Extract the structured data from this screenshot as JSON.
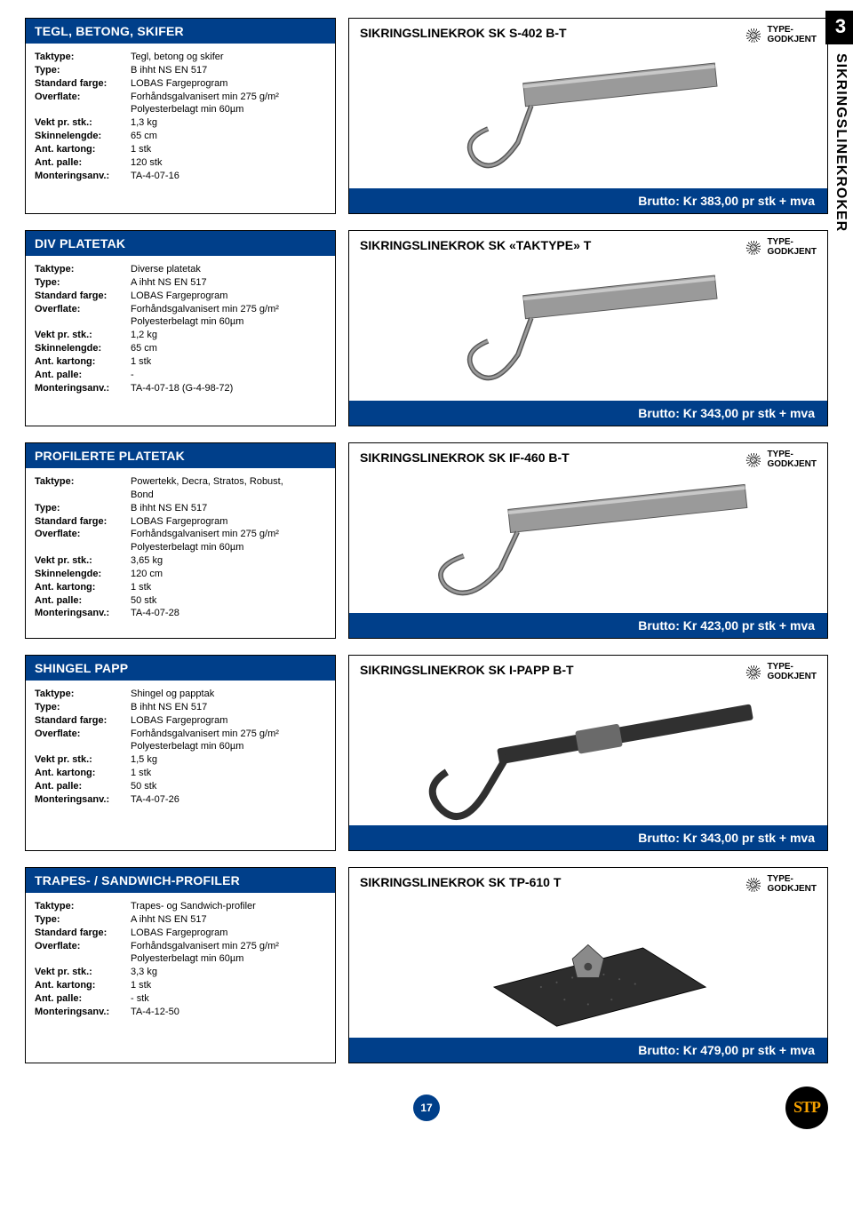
{
  "side": {
    "chapter": "3",
    "label": "SIKRINGSLINEKROKER"
  },
  "footer": {
    "page": "17",
    "brand": "STP"
  },
  "approval_label": "TYPE-\nGODKJENT",
  "spec_labels": {
    "taktype": "Taktype:",
    "type": "Type:",
    "farge": "Standard farge:",
    "overflate": "Overflate:",
    "vekt": "Vekt pr. stk.:",
    "skinne": "Skinnelengde:",
    "kartong": "Ant. kartong:",
    "palle": "Ant. palle:",
    "mont": "Monteringsanv.:"
  },
  "products": [
    {
      "spec_title": "TEGL, BETONG, SKIFER",
      "prod_title": "SIKRINGSLINEKROK SK S-402 B-T",
      "brutto": "Brutto: Kr 383,00 pr stk + mva",
      "illus": "rail-hook",
      "fields": {
        "taktype": "Tegl, betong og skifer",
        "type": "B ihht NS EN 517",
        "farge": "LOBAS Fargeprogram",
        "overflate": "Forhåndsgalvanisert min 275 g/m²\nPolyesterbelagt min 60µm",
        "vekt": "1,3 kg",
        "skinne": "65 cm",
        "kartong": "1 stk",
        "palle": "120 stk",
        "mont": "TA-4-07-16"
      }
    },
    {
      "spec_title": "DIV PLATETAK",
      "prod_title": "SIKRINGSLINEKROK SK «TAKTYPE» T",
      "brutto": "Brutto: Kr 343,00 pr stk + mva",
      "illus": "plate-hook",
      "fields": {
        "taktype": "Diverse platetak",
        "type": "A ihht NS EN 517",
        "farge": "LOBAS Fargeprogram",
        "overflate": "Forhåndsgalvanisert min 275 g/m²\nPolyesterbelagt min 60µm",
        "vekt": "1,2 kg",
        "skinne": "65 cm",
        "kartong": "1 stk",
        "palle": "-",
        "mont": "TA-4-07-18 (G-4-98-72)"
      }
    },
    {
      "spec_title": "PROFILERTE PLATETAK",
      "prod_title": "SIKRINGSLINEKROK SK IF-460 B-T",
      "brutto": "Brutto: Kr 423,00 pr stk + mva",
      "illus": "long-rail-hook",
      "fields": {
        "taktype": "Powertekk, Decra, Stratos, Robust,\nBond",
        "type": "B ihht NS EN 517",
        "farge": "LOBAS Fargeprogram",
        "overflate": "Forhåndsgalvanisert min 275 g/m²\nPolyesterbelagt min 60µm",
        "vekt": "3,65 kg",
        "skinne": "120 cm",
        "kartong": "1 stk",
        "palle": "50 stk",
        "mont": "TA-4-07-28"
      }
    },
    {
      "spec_title": "SHINGEL PAPP",
      "prod_title": "SIKRINGSLINEKROK SK I-PAPP B-T",
      "brutto": "Brutto: Kr 343,00 pr stk + mva",
      "illus": "strap-hook",
      "fields": {
        "taktype": "Shingel og papptak",
        "type": "B ihht NS EN 517",
        "farge": "LOBAS Fargeprogram",
        "overflate": "Forhåndsgalvanisert min 275 g/m²\nPolyesterbelagt min 60µm",
        "vekt": "1,5 kg",
        "kartong": "1 stk",
        "palle": "50 stk",
        "mont": "TA-4-07-26"
      }
    },
    {
      "spec_title": "TRAPES- / SANDWICH-PROFILER",
      "prod_title": "SIKRINGSLINEKROK SK TP-610 T",
      "brutto": "Brutto: Kr 479,00 pr stk + mva",
      "illus": "plate-anchor",
      "fields": {
        "taktype": "Trapes- og Sandwich-profiler",
        "type": "A ihht NS EN 517",
        "farge": "LOBAS Fargeprogram",
        "overflate": "Forhåndsgalvanisert min 275 g/m²\nPolyesterbelagt min 60µm",
        "vekt": "3,3 kg",
        "kartong": "1 stk",
        "palle": "- stk",
        "mont": "TA-4-12-50"
      }
    }
  ],
  "colors": {
    "brand_blue": "#003f8a",
    "black": "#000000",
    "white": "#ffffff",
    "orange": "#f5a100"
  }
}
